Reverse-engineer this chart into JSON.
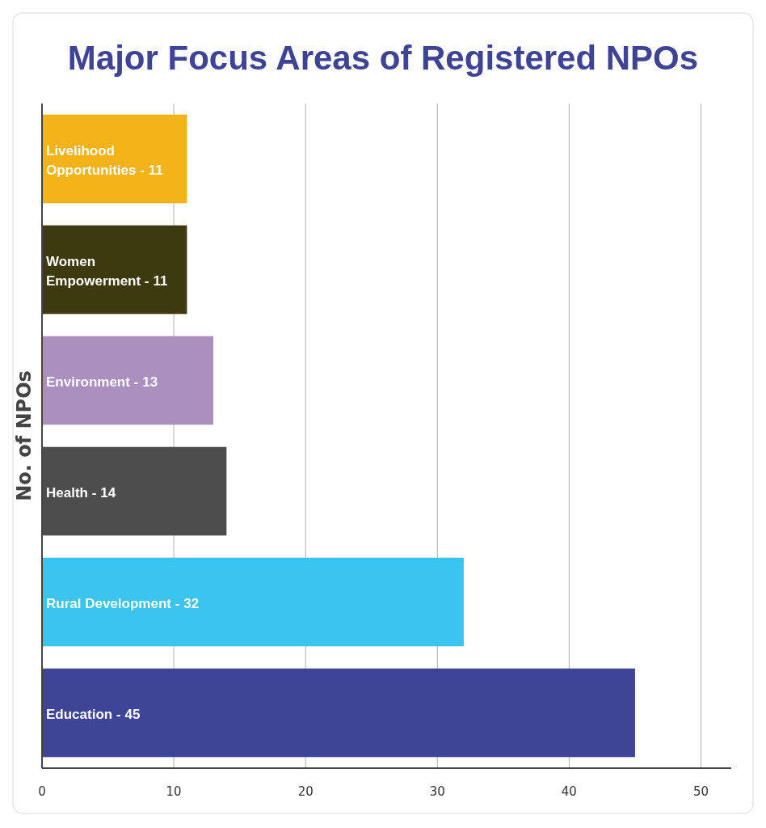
{
  "chart_data": {
    "type": "bar",
    "orientation": "horizontal",
    "title": "Major Focus Areas of Registered NPOs",
    "ylabel": "No. of NPOs",
    "categories": [
      "Livelihood Opportunities -",
      "Women Empowerment -",
      "Environment -",
      "Health -",
      "Rural Development -",
      "Education -"
    ],
    "values": [
      11,
      11,
      13,
      14,
      32,
      45
    ],
    "colors": [
      "#f5b31a",
      "#3e3a10",
      "#ab8fbf",
      "#4d4d4d",
      "#3bc4ef",
      "#3f4596"
    ],
    "data_labels": true,
    "xlim": [
      0,
      52.3
    ],
    "xticks": [
      0,
      10,
      20,
      30,
      40,
      50
    ],
    "grid": "x"
  }
}
